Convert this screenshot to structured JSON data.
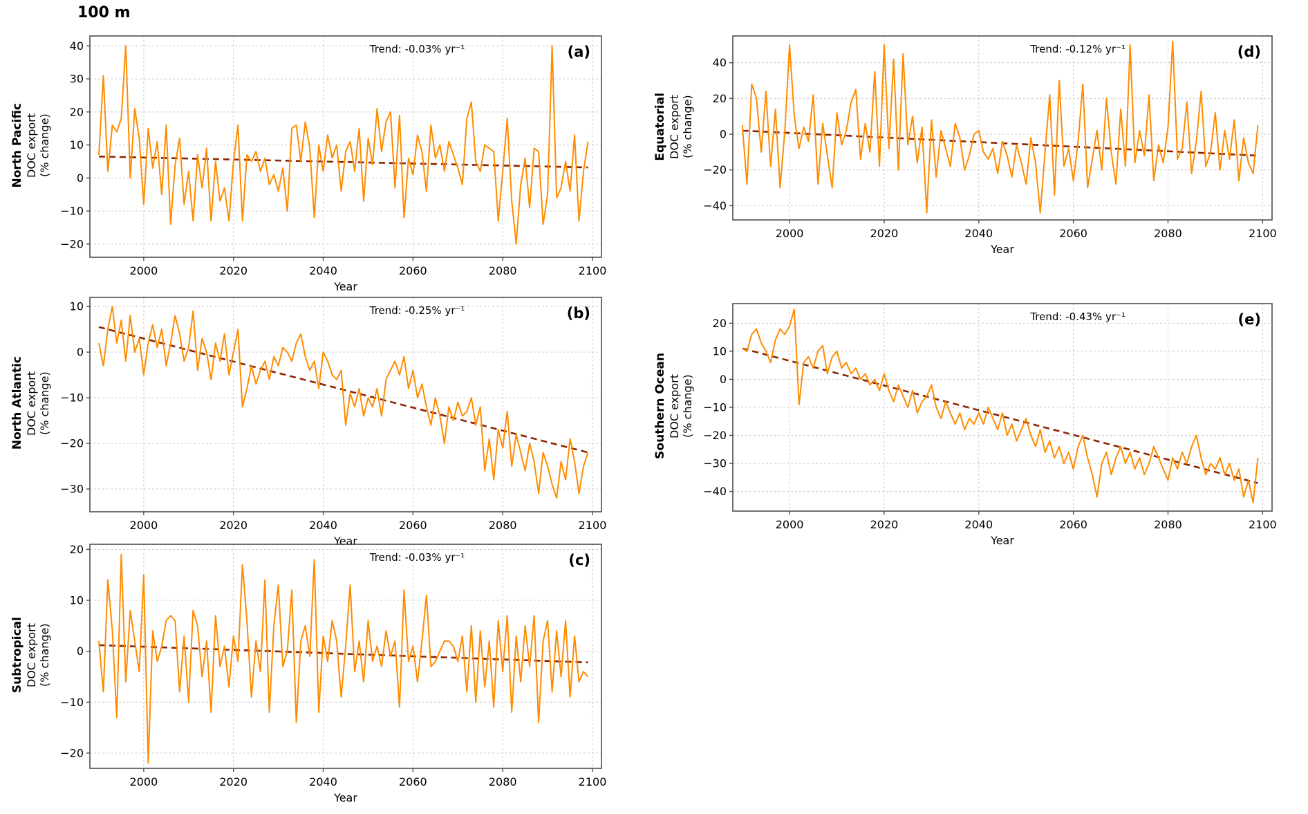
{
  "figure": {
    "title": "100 m"
  },
  "colors": {
    "line": "#FF8C00",
    "trend": "#8B2500",
    "grid": "#cccccc",
    "frame": "#4d4d4d",
    "text": "#000000"
  },
  "chart_data": [
    {
      "type": "line",
      "letter": "(a)",
      "region": "North Pacific",
      "ylabel_line1": "DOC export",
      "ylabel_line2": "(% change)",
      "xlabel": "Year",
      "trend_label": "Trend: -0.03% yr⁻¹",
      "trend_rate_pct_per_yr": -0.03,
      "x_start": 1990,
      "x_step": 1,
      "xlim": [
        1988,
        2102
      ],
      "xticks": [
        2000,
        2020,
        2040,
        2060,
        2080,
        2100
      ],
      "ylim": [
        -24,
        43
      ],
      "yticks": [
        -20,
        -10,
        0,
        10,
        20,
        30,
        40
      ],
      "trend_start": 6.5,
      "trend_end": 3.2,
      "values": [
        7,
        31,
        2,
        16,
        14,
        18,
        40,
        0,
        21,
        12,
        -8,
        15,
        3,
        11,
        -5,
        16,
        -14,
        4,
        12,
        -8,
        2,
        -13,
        7,
        -3,
        9,
        -13,
        5,
        -7,
        -3,
        -13,
        5,
        16,
        -13,
        7,
        5,
        8,
        2,
        6,
        -2,
        1,
        -4,
        3,
        -10,
        15,
        16,
        5,
        17,
        9,
        -12,
        10,
        2,
        13,
        6,
        10,
        -4,
        8,
        11,
        2,
        15,
        -7,
        12,
        4,
        21,
        8,
        17,
        20,
        -3,
        19,
        -12,
        6,
        1,
        13,
        8,
        -4,
        16,
        6,
        10,
        2,
        11,
        7,
        3,
        -2,
        18,
        23,
        5,
        2,
        10,
        9,
        8,
        -13,
        2,
        18,
        -7,
        -20,
        -2,
        6,
        -9,
        9,
        8,
        -14,
        -5,
        40,
        -6,
        -3,
        5,
        -4,
        13,
        -13,
        2,
        11
      ]
    },
    {
      "type": "line",
      "letter": "(b)",
      "region": "North Atlantic",
      "ylabel_line1": "DOC export",
      "ylabel_line2": "(% change)",
      "xlabel": "Year",
      "trend_label": "Trend: -0.25% yr⁻¹",
      "trend_rate_pct_per_yr": -0.25,
      "x_start": 1990,
      "x_step": 1,
      "xlim": [
        1988,
        2102
      ],
      "xticks": [
        2000,
        2020,
        2040,
        2060,
        2080,
        2100
      ],
      "ylim": [
        -35,
        12
      ],
      "yticks": [
        -30,
        -20,
        -10,
        0,
        10
      ],
      "trend_start": 5.5,
      "trend_end": -22,
      "values": [
        2,
        -3,
        5,
        10,
        2,
        7,
        -2,
        8,
        0,
        3,
        -5,
        2,
        6,
        1,
        5,
        -3,
        2,
        8,
        4,
        -2,
        1,
        9,
        -4,
        3,
        0,
        -6,
        2,
        -2,
        4,
        -5,
        0,
        5,
        -12,
        -8,
        -3,
        -7,
        -4,
        -2,
        -6,
        -1,
        -3,
        1,
        0,
        -2,
        2,
        4,
        -1,
        -4,
        -2,
        -8,
        0,
        -2,
        -5,
        -6,
        -4,
        -16,
        -9,
        -12,
        -8,
        -14,
        -10,
        -12,
        -8,
        -14,
        -6,
        -4,
        -2,
        -5,
        -1,
        -8,
        -4,
        -10,
        -7,
        -12,
        -16,
        -10,
        -14,
        -20,
        -12,
        -15,
        -11,
        -14,
        -13,
        -10,
        -16,
        -12,
        -26,
        -19,
        -28,
        -17,
        -21,
        -13,
        -25,
        -18,
        -22,
        -26,
        -20,
        -24,
        -31,
        -22,
        -25,
        -29,
        -32,
        -24,
        -28,
        -19,
        -24,
        -31,
        -25,
        -22
      ]
    },
    {
      "type": "line",
      "letter": "(c)",
      "region": "Subtropical",
      "ylabel_line1": "DOC export",
      "ylabel_line2": "(% change)",
      "xlabel": "Year",
      "trend_label": "Trend: -0.03% yr⁻¹",
      "trend_rate_pct_per_yr": -0.03,
      "x_start": 1990,
      "x_step": 1,
      "xlim": [
        1988,
        2102
      ],
      "xticks": [
        2000,
        2020,
        2040,
        2060,
        2080,
        2100
      ],
      "ylim": [
        -23,
        21
      ],
      "yticks": [
        -20,
        -10,
        0,
        10,
        20
      ],
      "trend_start": 1.2,
      "trend_end": -2.2,
      "values": [
        2,
        -8,
        14,
        4,
        -13,
        19,
        -6,
        8,
        2,
        -4,
        15,
        -22,
        4,
        -2,
        1,
        6,
        7,
        6,
        -8,
        3,
        -10,
        8,
        5,
        -5,
        2,
        -12,
        7,
        -3,
        1,
        -7,
        3,
        -2,
        17,
        6,
        -9,
        2,
        -4,
        14,
        -12,
        5,
        13,
        -3,
        0,
        12,
        -14,
        2,
        5,
        -1,
        18,
        -12,
        3,
        -2,
        6,
        2,
        -9,
        1,
        13,
        -4,
        2,
        -6,
        6,
        -2,
        1,
        -3,
        4,
        -1,
        2,
        -11,
        12,
        -2,
        1,
        -6,
        2,
        11,
        -3,
        -2,
        0,
        2,
        2,
        1,
        -2,
        3,
        -8,
        5,
        -10,
        4,
        -7,
        2,
        -11,
        6,
        -4,
        7,
        -12,
        3,
        -6,
        5,
        -3,
        7,
        -14,
        2,
        6,
        -8,
        4,
        -5,
        6,
        -9,
        3,
        -6,
        -4,
        -5
      ]
    },
    {
      "type": "line",
      "letter": "(d)",
      "region": "Equatorial",
      "ylabel_line1": "DOC export",
      "ylabel_line2": "(% change)",
      "xlabel": "Year",
      "trend_label": "Trend: -0.12% yr⁻¹",
      "trend_rate_pct_per_yr": -0.12,
      "x_start": 1990,
      "x_step": 1,
      "xlim": [
        1988,
        2102
      ],
      "xticks": [
        2000,
        2020,
        2040,
        2060,
        2080,
        2100
      ],
      "ylim": [
        -48,
        55
      ],
      "yticks": [
        -40,
        -20,
        0,
        20,
        40
      ],
      "trend_start": 2,
      "trend_end": -12,
      "values": [
        5,
        -28,
        28,
        20,
        -10,
        24,
        -18,
        14,
        -30,
        2,
        50,
        10,
        -8,
        4,
        -4,
        22,
        -28,
        6,
        -12,
        -30,
        12,
        -6,
        2,
        18,
        25,
        -14,
        6,
        -10,
        35,
        -18,
        50,
        -8,
        42,
        -20,
        45,
        -6,
        10,
        -16,
        4,
        -44,
        8,
        -24,
        2,
        -8,
        -18,
        6,
        -2,
        -20,
        -12,
        0,
        2,
        -10,
        -14,
        -8,
        -22,
        -4,
        -12,
        -24,
        -6,
        -16,
        -28,
        -2,
        -16,
        -44,
        -10,
        22,
        -34,
        30,
        -18,
        -8,
        -26,
        -4,
        28,
        -30,
        -14,
        2,
        -20,
        20,
        -10,
        -28,
        14,
        -18,
        50,
        -16,
        2,
        -12,
        22,
        -26,
        -6,
        -16,
        4,
        52,
        -14,
        -8,
        18,
        -22,
        -4,
        24,
        -18,
        -10,
        12,
        -20,
        2,
        -14,
        8,
        -26,
        -2,
        -16,
        -22,
        5
      ]
    },
    {
      "type": "line",
      "letter": "(e)",
      "region": "Southern Ocean",
      "ylabel_line1": "DOC export",
      "ylabel_line2": "(% change)",
      "xlabel": "Year",
      "trend_label": "Trend: -0.43% yr⁻¹",
      "trend_rate_pct_per_yr": -0.43,
      "x_start": 1990,
      "x_step": 1,
      "xlim": [
        1988,
        2102
      ],
      "xticks": [
        2000,
        2020,
        2040,
        2060,
        2080,
        2100
      ],
      "ylim": [
        -47,
        27
      ],
      "yticks": [
        -40,
        -30,
        -20,
        -10,
        0,
        10,
        20
      ],
      "trend_start": 11,
      "trend_end": -37,
      "values": [
        11,
        10,
        16,
        18,
        13,
        10,
        6,
        14,
        18,
        16,
        19,
        25,
        -9,
        6,
        8,
        4,
        10,
        12,
        2,
        8,
        10,
        4,
        6,
        2,
        4,
        0,
        2,
        -2,
        0,
        -4,
        2,
        -4,
        -8,
        -2,
        -6,
        -10,
        -4,
        -12,
        -8,
        -6,
        -2,
        -10,
        -14,
        -8,
        -12,
        -16,
        -12,
        -18,
        -14,
        -16,
        -12,
        -16,
        -10,
        -14,
        -18,
        -12,
        -20,
        -16,
        -22,
        -18,
        -14,
        -20,
        -24,
        -18,
        -26,
        -22,
        -28,
        -24,
        -30,
        -26,
        -32,
        -24,
        -20,
        -28,
        -34,
        -42,
        -30,
        -26,
        -34,
        -28,
        -24,
        -30,
        -26,
        -32,
        -28,
        -34,
        -30,
        -24,
        -28,
        -32,
        -36,
        -28,
        -32,
        -26,
        -30,
        -24,
        -20,
        -28,
        -34,
        -30,
        -32,
        -28,
        -34,
        -30,
        -36,
        -32,
        -42,
        -36,
        -44,
        -28
      ]
    }
  ]
}
